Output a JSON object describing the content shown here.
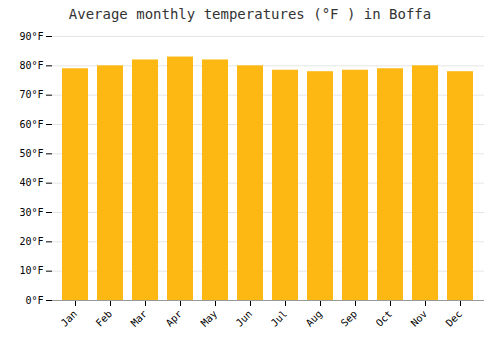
{
  "chart_data": {
    "type": "bar",
    "title": "Average monthly temperatures (°F ) in Boffa",
    "categories": [
      "Jan",
      "Feb",
      "Mar",
      "Apr",
      "May",
      "Jun",
      "Jul",
      "Aug",
      "Sep",
      "Oct",
      "Nov",
      "Dec"
    ],
    "values": [
      79,
      80,
      82,
      83,
      82,
      80,
      78.5,
      78,
      78.5,
      79,
      80,
      78
    ],
    "color": "#FDB813",
    "ylim": [
      0,
      90
    ],
    "yticks": [
      {
        "value": 0,
        "label": "0°F"
      },
      {
        "value": 10,
        "label": "10°F"
      },
      {
        "value": 20,
        "label": "20°F"
      },
      {
        "value": 30,
        "label": "30°F"
      },
      {
        "value": 40,
        "label": "40°F"
      },
      {
        "value": 50,
        "label": "50°F"
      },
      {
        "value": 60,
        "label": "60°F"
      },
      {
        "value": 70,
        "label": "70°F"
      },
      {
        "value": 80,
        "label": "80°F"
      },
      {
        "value": 90,
        "label": "90°F"
      }
    ],
    "grid": true
  }
}
